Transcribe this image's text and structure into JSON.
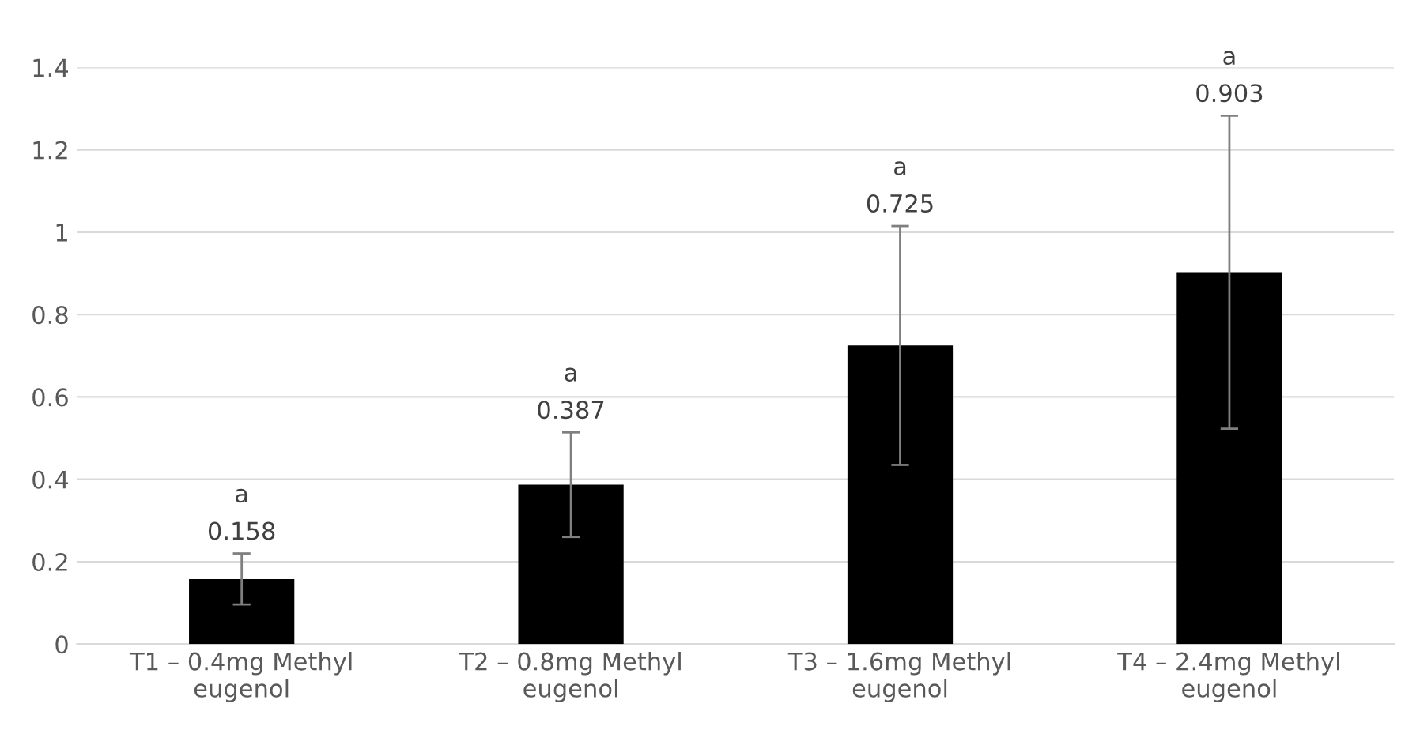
{
  "chart_data": {
    "type": "bar",
    "categories": [
      "T1 – 0.4mg Methyl\neugenol",
      "T2 – 0.8mg Methyl\neugenol",
      "T3 – 1.6mg Methyl\neugenol",
      "T4 – 2.4mg Methyl\neugenol"
    ],
    "values": [
      0.158,
      0.387,
      0.725,
      0.903
    ],
    "errors": [
      0.062,
      0.127,
      0.29,
      0.38
    ],
    "color": "#000000",
    "annotations": [
      {
        "text": "0.158",
        "x": "T1 – 0.4mg Methyl\neugenol",
        "y": 0.22
      },
      {
        "text": "0.387",
        "x": "T2 – 0.8mg Methyl\neugenol",
        "y": 0.514
      },
      {
        "text": "0.725",
        "x": "T3 – 1.6mg Methyl\neugenol",
        "y": 1.015
      },
      {
        "text": "0.903",
        "x": "T4 – 2.4mg Methyl\neugenol",
        "y": 1.283
      },
      {
        "text": "a",
        "x": "T1 – 0.4mg Methyl\neugenol",
        "y": 0.22
      },
      {
        "text": "a",
        "x": "T2 – 0.8mg Methyl\neugenol",
        "y": 0.514
      },
      {
        "text": "a",
        "x": "T3 – 1.6mg Methyl\neugenol",
        "y": 1.015
      },
      {
        "text": "a",
        "x": "T4 – 2.4mg Methyl\neugenol",
        "y": 1.283
      }
    ],
    "ylim": [
      0,
      1.4
    ],
    "yticks": [
      0,
      0.2,
      0.4,
      0.6,
      0.8,
      1,
      1.2,
      1.4
    ],
    "grid": "y"
  }
}
